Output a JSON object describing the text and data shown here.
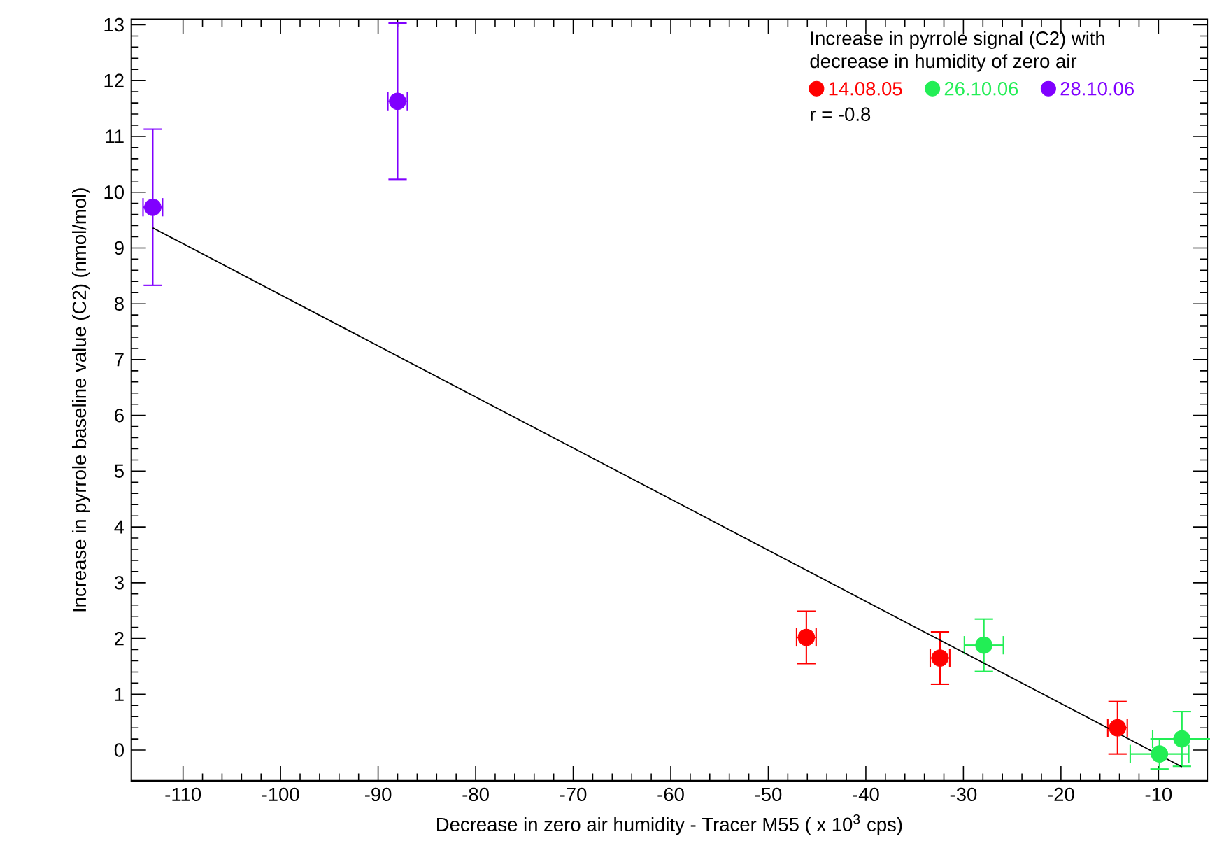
{
  "chart_data": {
    "type": "scatter",
    "xlabel": "Decrease in zero air humidity - Tracer M55 ( x 10$^{3}$ cps)",
    "ylabel": "Increase in pyrrole baseline value (C2) (nmol/mol)",
    "legend_title": "Increase in pyrrole signal (C2) with decrease in humidity of zero air",
    "annotations": [
      "r = -0.8"
    ],
    "legend": "top right",
    "marker": "circle",
    "xlim": [
      -115.3,
      -5
    ],
    "xticks": [
      -110,
      -100,
      -90,
      -80,
      -70,
      -60,
      -50,
      -40,
      -30,
      -20,
      -10
    ],
    "ylim": [
      -0.55,
      13.1
    ],
    "yticks": [
      0,
      1,
      2,
      3,
      4,
      5,
      6,
      7,
      8,
      9,
      10,
      11,
      12,
      13
    ],
    "series": [
      {
        "name": "14.08.05",
        "color": "#ff0000",
        "x": [
          -46.1,
          -32.4,
          -14.2
        ],
        "values": [
          2.02,
          1.65,
          0.4
        ],
        "errors": [
          0.47,
          0.47,
          0.47
        ],
        "xerrors": [
          1,
          1,
          1
        ]
      },
      {
        "name": "26.10.06",
        "color": "#22ee55",
        "x": [
          -27.9,
          -9.9,
          -7.6
        ],
        "values": [
          1.88,
          -0.07,
          0.2
        ],
        "errors": [
          0.47,
          0.27,
          0.49
        ],
        "xerrors": [
          2,
          3,
          3
        ]
      },
      {
        "name": "28.10.06",
        "color": "#8000ff",
        "x": [
          -113.1,
          -88.0
        ],
        "values": [
          9.73,
          11.63
        ],
        "errors": [
          1.4,
          1.4
        ],
        "xerrors": [
          1,
          1
        ]
      },
      {
        "type": "line",
        "marker": "none",
        "color": "#000000",
        "x": [
          -113.1,
          -7.6
        ],
        "values": [
          9.36,
          -0.3
        ]
      }
    ]
  }
}
